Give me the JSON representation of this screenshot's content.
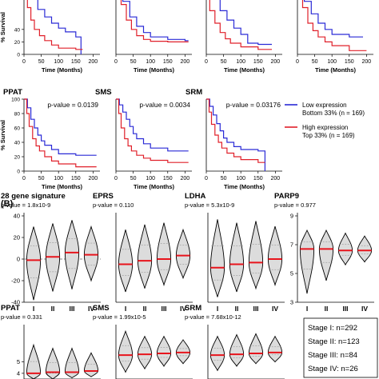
{
  "colors": {
    "low": "#2a2ad6",
    "high": "#e0202a",
    "median": "#e8141c",
    "axis": "#000000",
    "violin_fill": "#dcdcdc"
  },
  "legend": {
    "low_line1": "Low expression",
    "low_line2": "Bottom 33% (n = 169)",
    "high_line1": "High expression",
    "high_line2": "Top 33% (n = 169)"
  },
  "panel_b_label": "(B)",
  "stage_counts": [
    "Stage I: n=292",
    "Stage II: n=123",
    "Stage III: n=84",
    "Stage IV: n=26"
  ],
  "chart_data": [
    {
      "type": "line",
      "title": "",
      "xlabel": "Time (Months)",
      "ylabel": "% Survival",
      "xlim": [
        0,
        220
      ],
      "ylim": [
        0,
        100
      ],
      "xticks": [
        "0",
        "50",
        "100",
        "150",
        "200"
      ],
      "yticks": [
        "0",
        "20",
        "40"
      ],
      "series": [
        {
          "name": "Low expression",
          "x": [
            0,
            20,
            40,
            60,
            80,
            100,
            120,
            150,
            160,
            165
          ],
          "y": [
            100,
            90,
            72,
            60,
            50,
            42,
            36,
            28,
            28,
            0
          ]
        },
        {
          "name": "High expression",
          "x": [
            0,
            10,
            20,
            30,
            45,
            60,
            80,
            100,
            150,
            170
          ],
          "y": [
            100,
            75,
            55,
            40,
            30,
            22,
            15,
            10,
            8,
            8
          ]
        }
      ]
    },
    {
      "type": "line",
      "title": "",
      "xlabel": "Time (Months)",
      "ylabel": "",
      "xlim": [
        0,
        220
      ],
      "ylim": [
        0,
        100
      ],
      "xticks": [
        "0",
        "50",
        "100",
        "150",
        "200"
      ],
      "yticks": [],
      "series": [
        {
          "name": "Low expression",
          "x": [
            0,
            20,
            40,
            60,
            80,
            100,
            150,
            200,
            210
          ],
          "y": [
            100,
            85,
            60,
            45,
            35,
            28,
            24,
            22,
            22
          ]
        },
        {
          "name": "High expression",
          "x": [
            0,
            15,
            30,
            45,
            60,
            80,
            100,
            150,
            210
          ],
          "y": [
            100,
            80,
            55,
            40,
            30,
            24,
            21,
            20,
            20
          ]
        }
      ]
    },
    {
      "type": "line",
      "title": "",
      "xlabel": "Time (Months)",
      "ylabel": "",
      "xlim": [
        0,
        220
      ],
      "ylim": [
        0,
        100
      ],
      "xticks": [
        "0",
        "50",
        "100",
        "150",
        "200"
      ],
      "yticks": [],
      "series": [
        {
          "name": "Low expression",
          "x": [
            0,
            20,
            40,
            60,
            80,
            100,
            120,
            150,
            190
          ],
          "y": [
            100,
            90,
            70,
            55,
            42,
            32,
            18,
            16,
            16
          ]
        },
        {
          "name": "High expression",
          "x": [
            0,
            10,
            25,
            40,
            55,
            70,
            100,
            150,
            190
          ],
          "y": [
            100,
            70,
            50,
            35,
            25,
            18,
            12,
            8,
            8
          ]
        }
      ]
    },
    {
      "type": "line",
      "title": "",
      "xlabel": "Time (Months)",
      "ylabel": "",
      "xlim": [
        0,
        220
      ],
      "ylim": [
        0,
        100
      ],
      "xticks": [
        "0",
        "50",
        "100",
        "150",
        "200"
      ],
      "yticks": [],
      "series": [
        {
          "name": "Low expression",
          "x": [
            0,
            20,
            40,
            60,
            80,
            100,
            150,
            190
          ],
          "y": [
            100,
            85,
            65,
            50,
            40,
            32,
            28,
            28
          ]
        },
        {
          "name": "High expression",
          "x": [
            0,
            15,
            30,
            45,
            60,
            80,
            100,
            150,
            200
          ],
          "y": [
            100,
            75,
            50,
            38,
            28,
            20,
            14,
            6,
            6
          ]
        }
      ]
    },
    {
      "type": "line",
      "title": "PPAT",
      "annotation": "p-value = 0.0139",
      "xlabel": "Time (Months)",
      "ylabel": "% Survival",
      "xlim": [
        0,
        220
      ],
      "ylim": [
        0,
        100
      ],
      "xticks": [
        "0",
        "50",
        "100",
        "150",
        "200"
      ],
      "yticks": [
        "0",
        "20",
        "40",
        "60",
        "80",
        "100"
      ],
      "series": [
        {
          "name": "Low expression",
          "x": [
            0,
            10,
            20,
            30,
            40,
            50,
            60,
            80,
            100,
            150,
            200,
            210
          ],
          "y": [
            100,
            88,
            72,
            60,
            50,
            42,
            36,
            30,
            24,
            22,
            22,
            22
          ]
        },
        {
          "name": "High expression",
          "x": [
            0,
            8,
            15,
            25,
            35,
            45,
            60,
            80,
            100,
            150,
            210
          ],
          "y": [
            100,
            80,
            62,
            45,
            35,
            28,
            20,
            14,
            10,
            6,
            6
          ]
        }
      ]
    },
    {
      "type": "line",
      "title": "SMS",
      "annotation": "p-value = 0.0034",
      "xlabel": "Time (Months)",
      "ylabel": "",
      "xlim": [
        0,
        220
      ],
      "ylim": [
        0,
        100
      ],
      "xticks": [
        "0",
        "50",
        "100",
        "150",
        "200"
      ],
      "yticks": [],
      "series": [
        {
          "name": "Low expression",
          "x": [
            0,
            10,
            20,
            30,
            40,
            50,
            60,
            80,
            100,
            150,
            200,
            210
          ],
          "y": [
            100,
            92,
            82,
            72,
            62,
            52,
            45,
            38,
            32,
            28,
            28,
            28
          ]
        },
        {
          "name": "High expression",
          "x": [
            0,
            8,
            15,
            25,
            35,
            45,
            60,
            80,
            100,
            150,
            210
          ],
          "y": [
            100,
            80,
            60,
            45,
            35,
            28,
            22,
            18,
            15,
            12,
            12
          ]
        }
      ]
    },
    {
      "type": "line",
      "title": "SRM",
      "annotation": "p-value = 0.03176",
      "xlabel": "Time (Months)",
      "ylabel": "",
      "xlim": [
        0,
        220
      ],
      "ylim": [
        0,
        100
      ],
      "xticks": [
        "0",
        "50",
        "100",
        "150",
        "200"
      ],
      "yticks": [],
      "series": [
        {
          "name": "Low expression",
          "x": [
            0,
            10,
            20,
            30,
            40,
            50,
            60,
            80,
            100,
            150,
            165,
            170
          ],
          "y": [
            100,
            90,
            78,
            66,
            56,
            46,
            40,
            34,
            30,
            28,
            28,
            0
          ]
        },
        {
          "name": "High expression",
          "x": [
            0,
            8,
            15,
            25,
            35,
            45,
            60,
            80,
            100,
            150,
            170
          ],
          "y": [
            100,
            82,
            65,
            50,
            40,
            32,
            25,
            20,
            16,
            12,
            12
          ]
        }
      ]
    },
    {
      "type": "violin",
      "title": "28 gene signature",
      "annotation": "p-value = 1.8x10-9",
      "categories": [
        "I",
        "II",
        "III",
        "IV"
      ],
      "ylim": [
        -40,
        40
      ],
      "yticks": [
        "-40",
        "-20",
        "0",
        "20",
        "40"
      ],
      "reference_line": 0,
      "median": [
        -1,
        2,
        6,
        4
      ],
      "min": [
        -38,
        -30,
        -28,
        -20
      ],
      "max": [
        30,
        33,
        36,
        30
      ]
    },
    {
      "type": "violin",
      "title": "EPRS",
      "annotation": "p-value = 0.110",
      "categories": [
        "I",
        "II",
        "III",
        "IV"
      ],
      "ylim": [
        5,
        10
      ],
      "yticks": [],
      "median": [
        7.2,
        7.4,
        7.5,
        7.7
      ],
      "min": [
        5.6,
        5.8,
        6.0,
        6.4
      ],
      "max": [
        9.2,
        9.5,
        9.6,
        9.2
      ]
    },
    {
      "type": "violin",
      "title": "LDHA",
      "annotation": "p-value = 5.3x10-9",
      "categories": [
        "I",
        "II",
        "III",
        "IV"
      ],
      "ylim": [
        5,
        10
      ],
      "yticks": [],
      "median": [
        7.0,
        7.2,
        7.3,
        7.5
      ],
      "min": [
        5.3,
        5.6,
        5.8,
        6.0
      ],
      "max": [
        9.8,
        9.6,
        9.7,
        9.4
      ]
    },
    {
      "type": "violin",
      "title": "PARP9",
      "annotation": "p-value = 0.977",
      "categories": [
        "I",
        "II",
        "III",
        "IV"
      ],
      "ylim": [
        3,
        9
      ],
      "yticks": [
        "3",
        "5",
        "7",
        "9"
      ],
      "median": [
        6.7,
        6.7,
        6.6,
        6.6
      ],
      "min": [
        3.6,
        4.5,
        5.6,
        5.8
      ],
      "max": [
        8.0,
        8.0,
        7.8,
        7.6
      ]
    },
    {
      "type": "violin",
      "title": "PPAT",
      "annotation": "p-value = 0.331",
      "categories": [
        "I",
        "II",
        "III",
        "IV"
      ],
      "ylim": [
        3.5,
        8
      ],
      "yticks": [
        "4",
        "5"
      ],
      "median": [
        4.0,
        4.1,
        4.1,
        4.2
      ],
      "min": [
        3.5,
        3.5,
        3.6,
        3.7
      ],
      "max": [
        6.5,
        6.2,
        6.2,
        5.8
      ]
    },
    {
      "type": "violin",
      "title": "SMS",
      "annotation": "p-value = 1.99x10-5",
      "categories": [
        "I",
        "II",
        "III",
        "IV"
      ],
      "ylim": [
        3,
        9
      ],
      "yticks": [],
      "median": [
        5.8,
        5.9,
        6.0,
        6.1
      ],
      "min": [
        3.8,
        4.2,
        4.5,
        4.8
      ],
      "max": [
        8.6,
        8.0,
        8.0,
        7.6
      ]
    },
    {
      "type": "violin",
      "title": "SRM",
      "annotation": "p-value = 7.68x10-12",
      "categories": [
        "I",
        "II",
        "III",
        "IV"
      ],
      "ylim": [
        3,
        9
      ],
      "yticks": [],
      "median": [
        5.8,
        5.9,
        6.0,
        6.1
      ],
      "min": [
        4.0,
        4.5,
        4.8,
        5.0
      ],
      "max": [
        8.0,
        8.2,
        8.3,
        8.0
      ]
    }
  ]
}
